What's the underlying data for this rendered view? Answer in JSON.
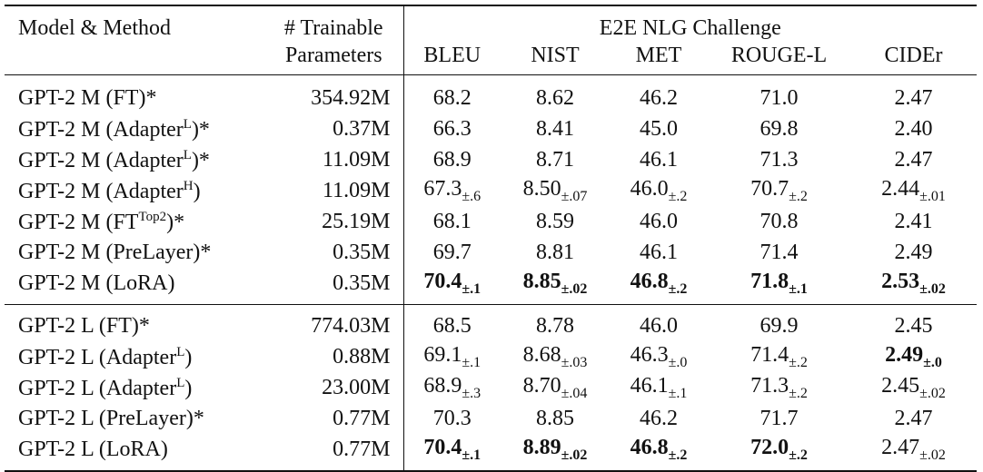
{
  "header": {
    "model_method": "Model & Method",
    "trainable_line1": "# Trainable",
    "trainable_line2": "Parameters",
    "challenge": "E2E NLG Challenge",
    "metrics": [
      "BLEU",
      "NIST",
      "MET",
      "ROUGE-L",
      "CIDEr"
    ]
  },
  "groups": [
    {
      "rows": [
        {
          "model_prefix": "GPT-2 M (FT)*",
          "model_sup": "",
          "model_suffix": "",
          "params": "354.92M",
          "cells": [
            {
              "v": "68.2",
              "s": "",
              "b": false
            },
            {
              "v": "8.62",
              "s": "",
              "b": false
            },
            {
              "v": "46.2",
              "s": "",
              "b": false
            },
            {
              "v": "71.0",
              "s": "",
              "b": false
            },
            {
              "v": "2.47",
              "s": "",
              "b": false
            }
          ]
        },
        {
          "model_prefix": "GPT-2 M (Adapter",
          "model_sup": "L",
          "model_suffix": ")*",
          "params": "0.37M",
          "cells": [
            {
              "v": "66.3",
              "s": "",
              "b": false
            },
            {
              "v": "8.41",
              "s": "",
              "b": false
            },
            {
              "v": "45.0",
              "s": "",
              "b": false
            },
            {
              "v": "69.8",
              "s": "",
              "b": false
            },
            {
              "v": "2.40",
              "s": "",
              "b": false
            }
          ]
        },
        {
          "model_prefix": "GPT-2 M (Adapter",
          "model_sup": "L",
          "model_suffix": ")*",
          "params": "11.09M",
          "cells": [
            {
              "v": "68.9",
              "s": "",
              "b": false
            },
            {
              "v": "8.71",
              "s": "",
              "b": false
            },
            {
              "v": "46.1",
              "s": "",
              "b": false
            },
            {
              "v": "71.3",
              "s": "",
              "b": false
            },
            {
              "v": "2.47",
              "s": "",
              "b": false
            }
          ]
        },
        {
          "model_prefix": "GPT-2 M (Adapter",
          "model_sup": "H",
          "model_suffix": ")",
          "params": "11.09M",
          "cells": [
            {
              "v": "67.3",
              "s": "±.6",
              "b": false
            },
            {
              "v": "8.50",
              "s": "±.07",
              "b": false
            },
            {
              "v": "46.0",
              "s": "±.2",
              "b": false
            },
            {
              "v": "70.7",
              "s": "±.2",
              "b": false
            },
            {
              "v": "2.44",
              "s": "±.01",
              "b": false
            }
          ]
        },
        {
          "model_prefix": "GPT-2 M (FT",
          "model_sup": "Top2",
          "model_suffix": ")*",
          "params": "25.19M",
          "cells": [
            {
              "v": "68.1",
              "s": "",
              "b": false
            },
            {
              "v": "8.59",
              "s": "",
              "b": false
            },
            {
              "v": "46.0",
              "s": "",
              "b": false
            },
            {
              "v": "70.8",
              "s": "",
              "b": false
            },
            {
              "v": "2.41",
              "s": "",
              "b": false
            }
          ]
        },
        {
          "model_prefix": "GPT-2 M (PreLayer)*",
          "model_sup": "",
          "model_suffix": "",
          "params": "0.35M",
          "cells": [
            {
              "v": "69.7",
              "s": "",
              "b": false
            },
            {
              "v": "8.81",
              "s": "",
              "b": false
            },
            {
              "v": "46.1",
              "s": "",
              "b": false
            },
            {
              "v": "71.4",
              "s": "",
              "b": false
            },
            {
              "v": "2.49",
              "s": "",
              "b": false
            }
          ]
        },
        {
          "model_prefix": "GPT-2 M (LoRA)",
          "model_sup": "",
          "model_suffix": "",
          "params": "0.35M",
          "cells": [
            {
              "v": "70.4",
              "s": "±.1",
              "b": true
            },
            {
              "v": "8.85",
              "s": "±.02",
              "b": true
            },
            {
              "v": "46.8",
              "s": "±.2",
              "b": true
            },
            {
              "v": "71.8",
              "s": "±.1",
              "b": true
            },
            {
              "v": "2.53",
              "s": "±.02",
              "b": true
            }
          ]
        }
      ]
    },
    {
      "rows": [
        {
          "model_prefix": "GPT-2 L (FT)*",
          "model_sup": "",
          "model_suffix": "",
          "params": "774.03M",
          "cells": [
            {
              "v": "68.5",
              "s": "",
              "b": false
            },
            {
              "v": "8.78",
              "s": "",
              "b": false
            },
            {
              "v": "46.0",
              "s": "",
              "b": false
            },
            {
              "v": "69.9",
              "s": "",
              "b": false
            },
            {
              "v": "2.45",
              "s": "",
              "b": false
            }
          ]
        },
        {
          "model_prefix": "GPT-2 L (Adapter",
          "model_sup": "L",
          "model_suffix": ")",
          "params": "0.88M",
          "cells": [
            {
              "v": "69.1",
              "s": "±.1",
              "b": false
            },
            {
              "v": "8.68",
              "s": "±.03",
              "b": false
            },
            {
              "v": "46.3",
              "s": "±.0",
              "b": false
            },
            {
              "v": "71.4",
              "s": "±.2",
              "b": false
            },
            {
              "v": "2.49",
              "s": "±.0",
              "b": true
            }
          ]
        },
        {
          "model_prefix": "GPT-2 L (Adapter",
          "model_sup": "L",
          "model_suffix": ")",
          "params": "23.00M",
          "cells": [
            {
              "v": "68.9",
              "s": "±.3",
              "b": false
            },
            {
              "v": "8.70",
              "s": "±.04",
              "b": false
            },
            {
              "v": "46.1",
              "s": "±.1",
              "b": false
            },
            {
              "v": "71.3",
              "s": "±.2",
              "b": false
            },
            {
              "v": "2.45",
              "s": "±.02",
              "b": false
            }
          ]
        },
        {
          "model_prefix": "GPT-2 L (PreLayer)*",
          "model_sup": "",
          "model_suffix": "",
          "params": "0.77M",
          "cells": [
            {
              "v": "70.3",
              "s": "",
              "b": false
            },
            {
              "v": "8.85",
              "s": "",
              "b": false
            },
            {
              "v": "46.2",
              "s": "",
              "b": false
            },
            {
              "v": "71.7",
              "s": "",
              "b": false
            },
            {
              "v": "2.47",
              "s": "",
              "b": false
            }
          ]
        },
        {
          "model_prefix": "GPT-2 L (LoRA)",
          "model_sup": "",
          "model_suffix": "",
          "params": "0.77M",
          "cells": [
            {
              "v": "70.4",
              "s": "±.1",
              "b": true
            },
            {
              "v": "8.89",
              "s": "±.02",
              "b": true
            },
            {
              "v": "46.8",
              "s": "±.2",
              "b": true
            },
            {
              "v": "72.0",
              "s": "±.2",
              "b": true
            },
            {
              "v": "2.47",
              "s": "±.02",
              "b": false
            }
          ]
        }
      ]
    }
  ]
}
